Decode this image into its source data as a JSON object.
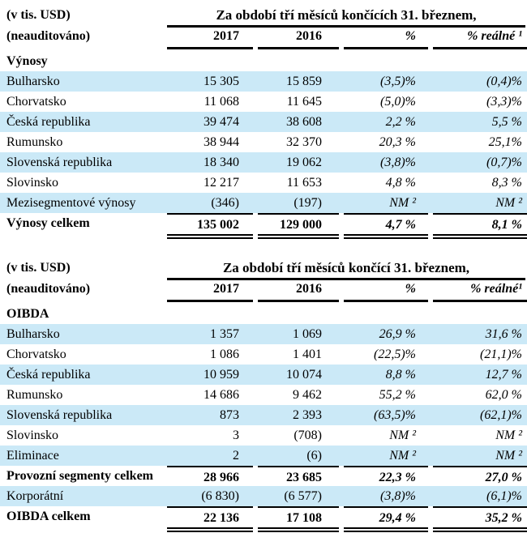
{
  "colors": {
    "stripe": "#cbe9f7",
    "rule": "#000000",
    "text": "#000000",
    "background": "#ffffff"
  },
  "tables": [
    {
      "unit_label": "(v tis. USD)",
      "audit_label": "(neauditováno)",
      "period_header": "Za období tří měsíců končících 31. březnem,",
      "columns": [
        "2017",
        "2016",
        "%",
        "% reálné ¹"
      ],
      "section_label": "Výnosy",
      "rows": [
        {
          "label": "Bulharsko",
          "y2017": "15 305",
          "y2016": "15 859",
          "pct": "(3,5)%",
          "pct_real": "(0,4)%",
          "striped": true
        },
        {
          "label": "Chorvatsko",
          "y2017": "11 068",
          "y2016": "11 645",
          "pct": "(5,0)%",
          "pct_real": "(3,3)%"
        },
        {
          "label": "Česká republika",
          "y2017": "39 474",
          "y2016": "38 608",
          "pct": "2,2 %",
          "pct_real": "5,5 %",
          "striped": true
        },
        {
          "label": "Rumunsko",
          "y2017": "38 944",
          "y2016": "32 370",
          "pct": "20,3 %",
          "pct_real": "25,1%"
        },
        {
          "label": "Slovenská republika",
          "y2017": "18 340",
          "y2016": "19 062",
          "pct": "(3,8)%",
          "pct_real": "(0,7)%",
          "striped": true
        },
        {
          "label": "Slovinsko",
          "y2017": "12 217",
          "y2016": "11 653",
          "pct": "4,8 %",
          "pct_real": "8,3 %"
        },
        {
          "label": "Mezisegmentové výnosy",
          "y2017": "(346)",
          "y2016": "(197)",
          "pct": "NM ²",
          "pct_real": "NM ²",
          "striped": true
        },
        {
          "label": "Výnosy celkem",
          "y2017": "135 002",
          "y2016": "129 000",
          "pct": "4,7 %",
          "pct_real": "8,1 %",
          "bold": true,
          "rule_above": true,
          "double_below": true
        }
      ]
    },
    {
      "unit_label": "(v tis. USD)",
      "audit_label": "(neauditováno)",
      "period_header": "Za období tří měsíců končící 31. březnem,",
      "columns": [
        "2017",
        "2016",
        "%",
        "% reálné¹"
      ],
      "section_label": "OIBDA",
      "rows": [
        {
          "label": "Bulharsko",
          "y2017": "1 357",
          "y2016": "1 069",
          "pct": "26,9 %",
          "pct_real": "31,6 %",
          "striped": true
        },
        {
          "label": "Chorvatsko",
          "y2017": "1 086",
          "y2016": "1 401",
          "pct": "(22,5)%",
          "pct_real": "(21,1)%"
        },
        {
          "label": "Česká republika",
          "y2017": "10 959",
          "y2016": "10 074",
          "pct": "8,8 %",
          "pct_real": "12,7 %",
          "striped": true
        },
        {
          "label": "Rumunsko",
          "y2017": "14 686",
          "y2016": "9 462",
          "pct": "55,2 %",
          "pct_real": "62,0 %"
        },
        {
          "label": "Slovenská republika",
          "y2017": "873",
          "y2016": "2 393",
          "pct": "(63,5)%",
          "pct_real": "(62,1)%",
          "striped": true
        },
        {
          "label": "Slovinsko",
          "y2017": "3",
          "y2016": "(708)",
          "pct": "NM ²",
          "pct_real": "NM ²"
        },
        {
          "label": "Eliminace",
          "y2017": "2",
          "y2016": "(6)",
          "pct": "NM ²",
          "pct_real": "NM ²",
          "striped": true
        },
        {
          "label": "Provozní segmenty celkem",
          "y2017": "28 966",
          "y2016": "23 685",
          "pct": "22,3 %",
          "pct_real": "27,0 %",
          "bold": true,
          "rule_above": true
        },
        {
          "label": "Korporátní",
          "y2017": "(6 830)",
          "y2016": "(6 577)",
          "pct": "(3,8)%",
          "pct_real": "(6,1)%",
          "striped": true
        },
        {
          "label": "OIBDA celkem",
          "y2017": "22 136",
          "y2016": "17 108",
          "pct": "29,4 %",
          "pct_real": "35,2 %",
          "bold": true,
          "rule_above": true,
          "double_below": true
        }
      ]
    }
  ]
}
